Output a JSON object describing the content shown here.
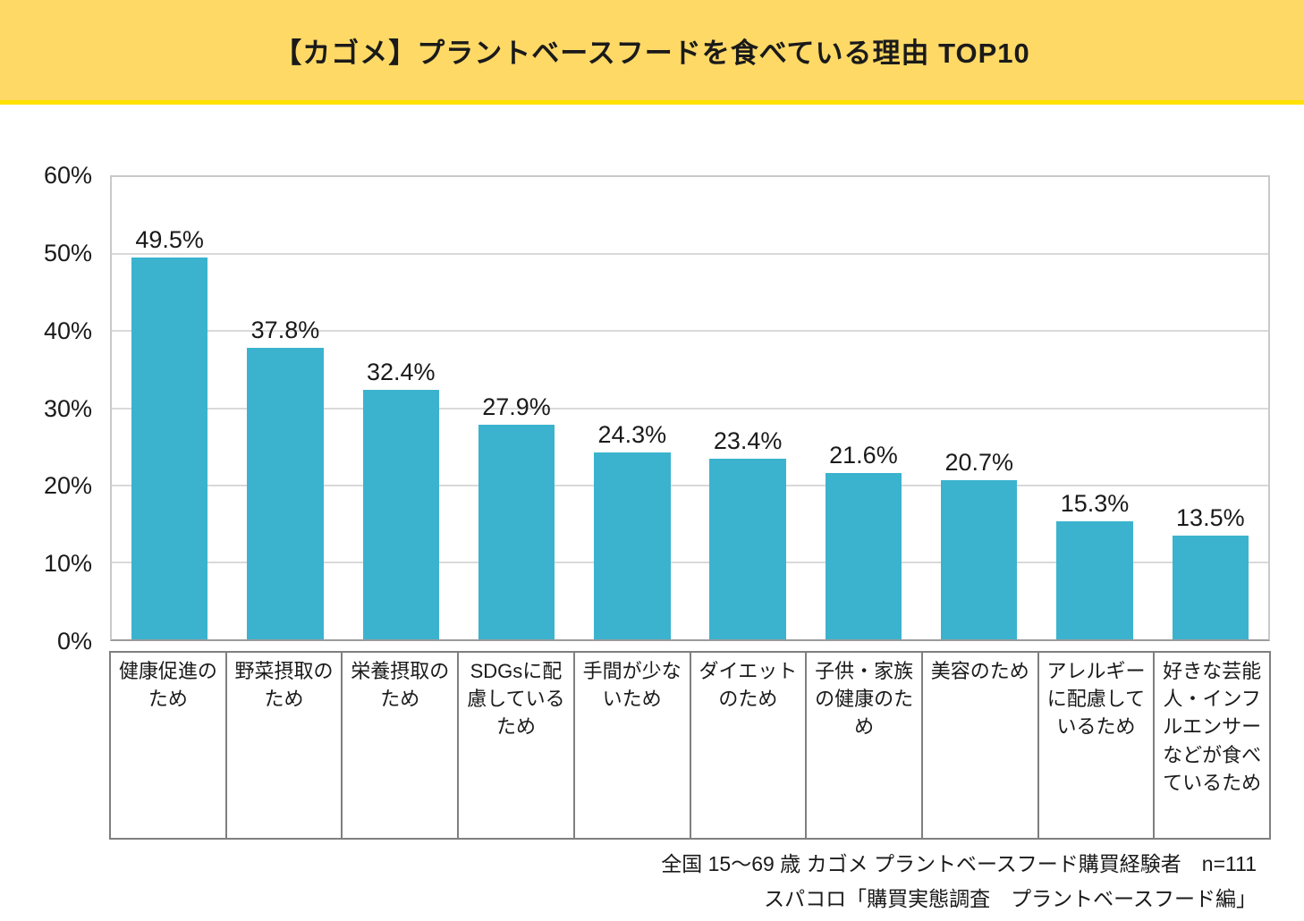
{
  "title": "【カゴメ】プラントベースフードを食べている理由 TOP10",
  "chart_data": {
    "type": "bar",
    "title": "【カゴメ】プラントベースフードを食べている理由 TOP10",
    "categories": [
      "健康促進のため",
      "野菜摂取のため",
      "栄養摂取のため",
      "SDGsに配慮しているため",
      "手間が少ないため",
      "ダイエットのため",
      "子供・家族の健康のため",
      "美容のため",
      "アレルギーに配慮しているため",
      "好きな芸能人・インフルエンサーなどが食べているため"
    ],
    "values": [
      49.5,
      37.8,
      32.4,
      27.9,
      24.3,
      23.4,
      21.6,
      20.7,
      15.3,
      13.5
    ],
    "value_label_suffix": "%",
    "xlabel": "",
    "ylabel": "",
    "ylim": [
      0,
      60
    ],
    "yticks": [
      "60%",
      "50%",
      "40%",
      "30%",
      "20%",
      "10%",
      "0%"
    ],
    "grid": true,
    "legend": false
  },
  "footer": {
    "line1": "全国 15～69 歳 カゴメ プラントベースフード購買経験者　n=111",
    "line2": "スパコロ「購買実態調査　プラントベースフード編」"
  },
  "colors": {
    "banner_fill": "#FED966",
    "banner_border": "#FFE103",
    "bar": "#3BB3CE",
    "grid": "#D9D9D9",
    "plot_border": "#C9C9C9",
    "axis_line": "#9B9B9B",
    "table_border": "#7F7F7F",
    "text": "#1A1A1A"
  }
}
